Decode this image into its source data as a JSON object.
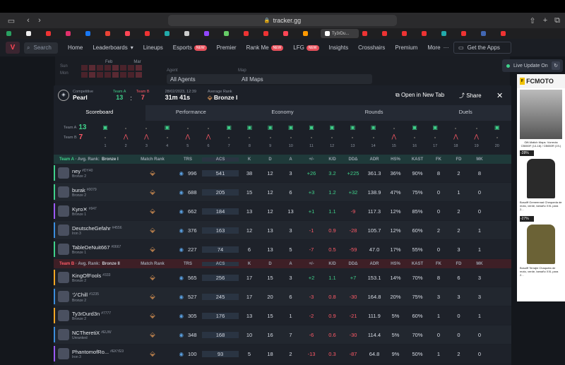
{
  "browser": {
    "url": "tracker.gg",
    "active_tab": "Ty3rDu...",
    "tab_colors": [
      "#29a060",
      "#eee",
      "#e33",
      "#e1306c",
      "#1877f2",
      "#ea4335",
      "#ff4655",
      "#e33",
      "#2aa",
      "#ccc",
      "#9146ff",
      "#6c6",
      "#e33",
      "#e33",
      "#ff4655",
      "#f90",
      "#fff",
      "#e33",
      "#e33",
      "#e33",
      "#e33",
      "#2aa",
      "#e33",
      "#4267b2",
      "#e33"
    ]
  },
  "nav": {
    "search": "Search",
    "items": [
      {
        "label": "Home"
      },
      {
        "label": "Leaderboards",
        "chev": "▾"
      },
      {
        "label": "Lineups"
      },
      {
        "label": "Esports",
        "badge": "NEW"
      },
      {
        "label": "Premier"
      },
      {
        "label": "Rank Me",
        "badge": "NEW"
      },
      {
        "label": "LFG",
        "badge": "NEW"
      },
      {
        "label": "Insights"
      },
      {
        "label": "Crosshairs"
      },
      {
        "label": "Premium"
      },
      {
        "label": "More",
        "chev": "···"
      }
    ],
    "get_apps": "Get the Apps"
  },
  "bg": {
    "months": [
      "Feb",
      "Mar"
    ],
    "days": [
      "Sun",
      "Mon"
    ],
    "agent_label": "Agent",
    "agent_value": "All Agents",
    "map_label": "Map",
    "map_value": "All Maps",
    "live": "Live Update On"
  },
  "ad": {
    "brand": "FCMOTO",
    "p1": "Gift-Matich Maps: Vorrecta CB650F (14-18) / CB650R (19-)",
    "off1": "-28%",
    "p2": "Bosolff Gemeenrad Chequeda de moto, verde, tamaño XXL para 2...",
    "off2": "-27%",
    "p3": "Bosolff Terrajie Chaqueta de moto, verde, tamaño XXL para 2..."
  },
  "match": {
    "mode": "Competitive",
    "map": "Pearl",
    "team_a_label": "Team A",
    "team_b_label": "Team B",
    "score_a": "13",
    "score_sep": ":",
    "score_b": "7",
    "datetime": "28/02/2023, 12:39",
    "duration": "31m 41s",
    "avg_rank_label": "Average Rank",
    "avg_rank": "Bronze I",
    "open_new_tab": "Open in New Tab",
    "share": "Share"
  },
  "tabs": [
    "Scoreboard",
    "Performance",
    "Economy",
    "Rounds",
    "Duels"
  ],
  "timeline": {
    "team_a": "Team A",
    "score_a": "13",
    "team_b": "Team B",
    "score_b": "7",
    "rounds": [
      "1",
      "2",
      "3",
      "4",
      "5",
      "6",
      "7",
      "8",
      "9",
      "10",
      "11",
      "12",
      "13",
      "14",
      "15",
      "16",
      "17",
      "18",
      "19",
      "20"
    ],
    "winners": [
      "A",
      "B",
      "B",
      "A",
      "B",
      "B",
      "A",
      "A",
      "A",
      "A",
      "A",
      "A",
      "A",
      "A",
      "B",
      "A",
      "A",
      "B",
      "B",
      "A"
    ]
  },
  "headers": {
    "match_rank": "Match Rank",
    "trs": "TRS",
    "acs": "ACS",
    "k": "K",
    "d": "D",
    "a": "A",
    "pm": "+/-",
    "kd": "K/D",
    "dda": "DDΔ",
    "adr": "ADR",
    "hs": "HS%",
    "kast": "KAST",
    "fk": "FK",
    "fd": "FD",
    "mk": "MK"
  },
  "team_a": {
    "label": "Team A",
    "avg_label": "Avg. Rank:",
    "avg_rank": "Bronze I",
    "players": [
      {
        "name": "ney",
        "tag": "#DY40",
        "rank": "Bronze 2",
        "trs": "996",
        "acs": "541",
        "k": "38",
        "d": "12",
        "a": "3",
        "pm": "+26",
        "kd": "3.2",
        "dda": "+225",
        "adr": "361.3",
        "hs": "36%",
        "kast": "90%",
        "fk": "8",
        "fd": "2",
        "mk": "8",
        "color": "#3fd18a"
      },
      {
        "name": "burak",
        "tag": "#0079",
        "rank": "Bronze 2",
        "trs": "688",
        "acs": "205",
        "k": "15",
        "d": "12",
        "a": "6",
        "pm": "+3",
        "kd": "1.2",
        "dda": "+32",
        "adr": "138.9",
        "hs": "47%",
        "kast": "75%",
        "fk": "0",
        "fd": "1",
        "mk": "0",
        "color": "#3fd18a"
      },
      {
        "name": "Kyro✕",
        "tag": "#947",
        "rank": "Bronze 1",
        "trs": "662",
        "acs": "184",
        "k": "13",
        "d": "12",
        "a": "13",
        "pm": "+1",
        "kd": "1.1",
        "dda": "-9",
        "adr": "117.3",
        "hs": "12%",
        "kast": "85%",
        "fk": "0",
        "fd": "2",
        "mk": "0",
        "color": "#9b59ff"
      },
      {
        "name": "DeutscheGefahr",
        "tag": "#4556",
        "rank": "Iron 3",
        "trs": "376",
        "acs": "163",
        "k": "12",
        "d": "13",
        "a": "3",
        "pm": "-1",
        "kd": "0.9",
        "dda": "-28",
        "adr": "105.7",
        "hs": "12%",
        "kast": "60%",
        "fk": "2",
        "fd": "2",
        "mk": "1",
        "color": "#3a8dde"
      },
      {
        "name": "TableDeNuit667",
        "tag": "#0667",
        "rank": "Bronze 1",
        "trs": "227",
        "acs": "74",
        "k": "6",
        "d": "13",
        "a": "5",
        "pm": "-7",
        "kd": "0.5",
        "dda": "-59",
        "adr": "47.0",
        "hs": "17%",
        "kast": "55%",
        "fk": "0",
        "fd": "3",
        "mk": "1",
        "color": "#3fd18a"
      }
    ]
  },
  "team_b": {
    "label": "Team B",
    "avg_label": "Avg. Rank:",
    "avg_rank": "Bronze II",
    "players": [
      {
        "name": "KingOfFools",
        "tag": "#333",
        "rank": "Bronze 2",
        "trs": "565",
        "acs": "256",
        "k": "17",
        "d": "15",
        "a": "3",
        "pm": "+2",
        "kd": "1.1",
        "dda": "+7",
        "adr": "153.1",
        "hs": "14%",
        "kast": "70%",
        "fk": "8",
        "fd": "6",
        "mk": "3",
        "color": "#f5a623"
      },
      {
        "name": "ツChill",
        "tag": "#1235",
        "rank": "Bronze 2",
        "trs": "527",
        "acs": "245",
        "k": "17",
        "d": "20",
        "a": "6",
        "pm": "-3",
        "kd": "0.8",
        "dda": "-30",
        "adr": "164.8",
        "hs": "20%",
        "kast": "75%",
        "fk": "3",
        "fd": "3",
        "mk": "3",
        "color": "#3a8dde"
      },
      {
        "name": "Ty3rDurd3n",
        "tag": "#7777",
        "rank": "Bronze 2",
        "trs": "305",
        "acs": "176",
        "k": "13",
        "d": "15",
        "a": "1",
        "pm": "-2",
        "kd": "0.9",
        "dda": "-21",
        "adr": "111.9",
        "hs": "5%",
        "kast": "60%",
        "fk": "1",
        "fd": "0",
        "mk": "1",
        "color": "#f5a623"
      },
      {
        "name": "NCTheretiX",
        "tag": "#EUW",
        "rank": "Unranked",
        "trs": "348",
        "acs": "168",
        "k": "10",
        "d": "16",
        "a": "7",
        "pm": "-6",
        "kd": "0.6",
        "dda": "-30",
        "adr": "114.4",
        "hs": "5%",
        "kast": "70%",
        "fk": "0",
        "fd": "0",
        "mk": "0",
        "color": "#3a8dde"
      },
      {
        "name": "PhantomofRo...",
        "tag": "#EKYE9",
        "rank": "Iron 3",
        "trs": "100",
        "acs": "93",
        "k": "5",
        "d": "18",
        "a": "2",
        "pm": "-13",
        "kd": "0.3",
        "dda": "-87",
        "adr": "64.8",
        "hs": "9%",
        "kast": "50%",
        "fk": "1",
        "fd": "2",
        "mk": "0",
        "color": "#9b59ff"
      }
    ]
  }
}
